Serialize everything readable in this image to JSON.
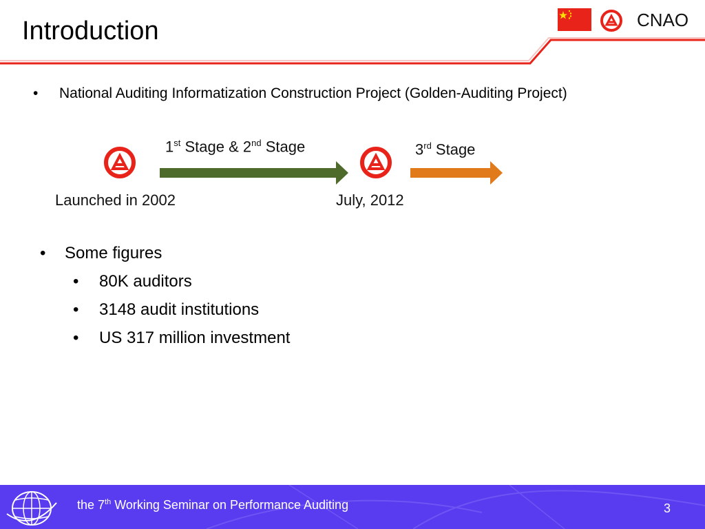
{
  "slide": {
    "title": "Introduction",
    "org": "CNAO",
    "bullet": "National Auditing Informatization Construction Project (Golden-Auditing Project)",
    "timeline": {
      "stage12_parts": [
        "1",
        "st",
        " Stage & 2",
        "nd",
        " Stage"
      ],
      "stage3_parts": [
        "3",
        "rd",
        " Stage"
      ],
      "start_label": "Launched in 2002",
      "mid_label": "July, 2012"
    },
    "figures_heading": "Some figures",
    "figures": [
      "80K auditors",
      "3148 audit institutions",
      "US 317 million investment"
    ],
    "footer": {
      "text_parts": [
        "the 7",
        "th",
        " Working Seminar on Performance Auditing"
      ],
      "page_number": "3"
    },
    "bullet_glyph": "•",
    "colors": {
      "accent_red": "#e8231a",
      "stage12_arrow": "#4e6b2b",
      "stage3_arrow": "#e07a1a",
      "footer_bg": "#5a3cf0"
    }
  }
}
